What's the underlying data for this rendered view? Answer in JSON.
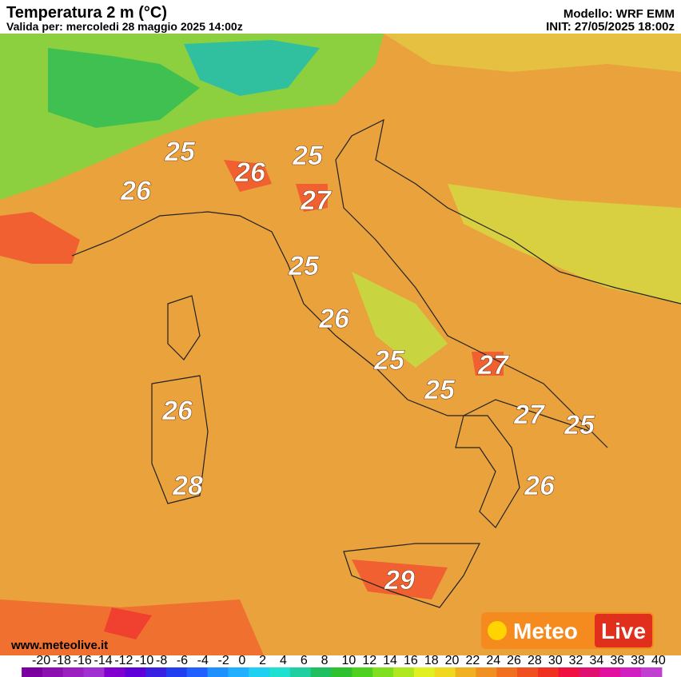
{
  "header": {
    "title": "Temperatura 2 m (°C)",
    "valid": "Valida per: mercoledi 28 maggio 2025 14:00z",
    "model": "Modello: WRF EMM",
    "init": "INIT: 27/05/2025 18:00z"
  },
  "map": {
    "labels": [
      25,
      26,
      26,
      25,
      27,
      25,
      26,
      25,
      27,
      25,
      27,
      25,
      26,
      28,
      26,
      29
    ]
  },
  "footer": {
    "website": "www.meteolive.it",
    "logo": [
      "Meteo",
      "Live"
    ]
  },
  "colorbar": {
    "ticks": [
      -20,
      -18,
      -16,
      -14,
      -12,
      -10,
      -8,
      -6,
      -4,
      -2,
      0,
      2,
      4,
      6,
      8,
      10,
      12,
      14,
      16,
      18,
      20,
      22,
      24,
      26,
      28,
      30,
      32,
      34,
      36,
      38,
      40
    ],
    "colors": [
      "#7a00a0",
      "#8a10b0",
      "#9a20c0",
      "#a030d0",
      "#8000d0",
      "#6000d8",
      "#3a20e0",
      "#2040f0",
      "#2060ff",
      "#2090ff",
      "#20b0ff",
      "#20d0f0",
      "#20e0d0",
      "#20d0a0",
      "#20c060",
      "#30c030",
      "#50d020",
      "#80e020",
      "#b0e820",
      "#e0f020",
      "#f0d820",
      "#f0b020",
      "#f09020",
      "#f07020",
      "#f05020",
      "#f03020",
      "#f01040",
      "#e01070",
      "#e010a0",
      "#d020c0",
      "#c040d0"
    ]
  }
}
